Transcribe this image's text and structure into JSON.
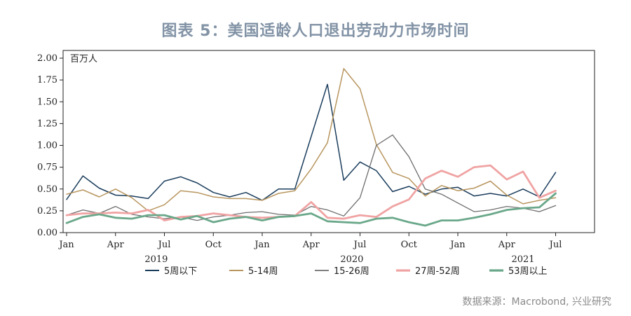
{
  "title": "图表 5：美国适龄人口退出劳动力市场时间",
  "source": "数据来源：Macrobond, 兴业研究",
  "chart_data": {
    "type": "line",
    "unit_label": "百万人",
    "ylim": [
      0,
      2.0
    ],
    "yticks": [
      "0.00",
      "0.25",
      "0.50",
      "0.75",
      "1.00",
      "1.25",
      "1.50",
      "1.75",
      "2.00"
    ],
    "month_ticks": [
      {
        "i": 0,
        "label": "Jan"
      },
      {
        "i": 3,
        "label": "Apr"
      },
      {
        "i": 6,
        "label": "Jul"
      },
      {
        "i": 9,
        "label": "Oct"
      },
      {
        "i": 12,
        "label": "Jan"
      },
      {
        "i": 15,
        "label": "Apr"
      },
      {
        "i": 18,
        "label": "Jul"
      },
      {
        "i": 21,
        "label": "Oct"
      },
      {
        "i": 24,
        "label": "Jan"
      },
      {
        "i": 27,
        "label": "Apr"
      },
      {
        "i": 30,
        "label": "Jul"
      }
    ],
    "year_labels": [
      {
        "i": 5.5,
        "label": "2019"
      },
      {
        "i": 17.5,
        "label": "2020"
      },
      {
        "i": 28.0,
        "label": "2021"
      }
    ],
    "x": [
      "2019-01",
      "2019-02",
      "2019-03",
      "2019-04",
      "2019-05",
      "2019-06",
      "2019-07",
      "2019-08",
      "2019-09",
      "2019-10",
      "2019-11",
      "2019-12",
      "2020-01",
      "2020-02",
      "2020-03",
      "2020-04",
      "2020-05",
      "2020-06",
      "2020-07",
      "2020-08",
      "2020-09",
      "2020-10",
      "2020-11",
      "2020-12",
      "2021-01",
      "2021-02",
      "2021-03",
      "2021-04",
      "2021-05",
      "2021-06",
      "2021-07"
    ],
    "series": [
      {
        "name": "5周以下",
        "color": "#1b3d5c",
        "width": 1.5,
        "values": [
          0.38,
          0.65,
          0.51,
          0.43,
          0.42,
          0.39,
          0.59,
          0.64,
          0.57,
          0.46,
          0.41,
          0.46,
          0.37,
          0.5,
          0.5,
          1.1,
          1.7,
          0.6,
          0.81,
          0.71,
          0.47,
          0.53,
          0.44,
          0.5,
          0.52,
          0.42,
          0.45,
          0.42,
          0.5,
          0.41,
          0.69
        ]
      },
      {
        "name": "5-14周",
        "color": "#b8965f",
        "width": 1.5,
        "values": [
          0.44,
          0.49,
          0.41,
          0.5,
          0.4,
          0.25,
          0.32,
          0.48,
          0.46,
          0.41,
          0.39,
          0.39,
          0.37,
          0.45,
          0.48,
          0.73,
          1.03,
          1.88,
          1.65,
          1.01,
          0.69,
          0.62,
          0.42,
          0.54,
          0.48,
          0.51,
          0.59,
          0.43,
          0.33,
          0.37,
          0.4
        ]
      },
      {
        "name": "15-26周",
        "color": "#6e6e6e",
        "width": 1.3,
        "values": [
          0.2,
          0.26,
          0.22,
          0.3,
          0.21,
          0.18,
          0.16,
          0.18,
          0.14,
          0.18,
          0.2,
          0.23,
          0.24,
          0.21,
          0.2,
          0.3,
          0.26,
          0.19,
          0.4,
          1.0,
          1.12,
          0.87,
          0.5,
          0.44,
          0.34,
          0.24,
          0.26,
          0.3,
          0.28,
          0.24,
          0.31
        ]
      },
      {
        "name": "27周-52周",
        "color": "#f0a3a3",
        "width": 2.8,
        "values": [
          0.2,
          0.22,
          0.22,
          0.23,
          0.22,
          0.26,
          0.14,
          0.18,
          0.19,
          0.22,
          0.2,
          0.18,
          0.17,
          0.18,
          0.19,
          0.35,
          0.17,
          0.16,
          0.2,
          0.18,
          0.3,
          0.38,
          0.62,
          0.71,
          0.64,
          0.75,
          0.77,
          0.61,
          0.7,
          0.4,
          0.48
        ]
      },
      {
        "name": "53周以上",
        "color": "#6aa88a",
        "width": 2.8,
        "values": [
          0.11,
          0.18,
          0.21,
          0.17,
          0.16,
          0.2,
          0.2,
          0.15,
          0.19,
          0.12,
          0.16,
          0.18,
          0.14,
          0.18,
          0.19,
          0.22,
          0.13,
          0.12,
          0.11,
          0.16,
          0.17,
          0.12,
          0.08,
          0.14,
          0.14,
          0.17,
          0.21,
          0.26,
          0.28,
          0.29,
          0.45
        ]
      }
    ]
  }
}
